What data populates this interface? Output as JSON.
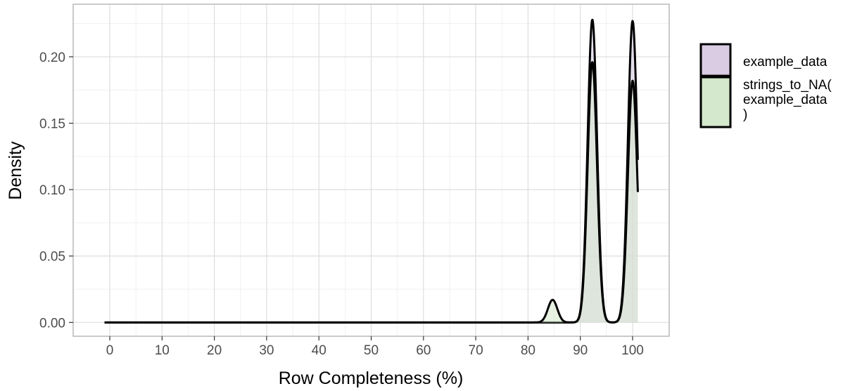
{
  "chart_data": {
    "type": "area",
    "xlabel": "Row Completeness (%)",
    "ylabel": "Density",
    "xlim": [
      -7,
      107
    ],
    "ylim": [
      -0.0104,
      0.2396
    ],
    "x_ticks": [
      0,
      10,
      20,
      30,
      40,
      50,
      60,
      70,
      80,
      90,
      100
    ],
    "x_tick_labels": [
      "0",
      "10",
      "20",
      "30",
      "40",
      "50",
      "60",
      "70",
      "80",
      "90",
      "100"
    ],
    "y_ticks": [
      0,
      0.05,
      0.1,
      0.15,
      0.2
    ],
    "y_tick_labels": [
      "0.00",
      "0.05",
      "0.10",
      "0.15",
      "0.20"
    ],
    "grid": true,
    "legend_position": "right",
    "series": [
      {
        "name": "example_data",
        "fill": "#d9cce3",
        "stroke": "#000000",
        "x_range": [
          -1,
          101
        ],
        "peaks": [
          {
            "center": 92.3,
            "height": 0.228,
            "sd": 0.9
          },
          {
            "center": 100.0,
            "height": 0.227,
            "sd": 0.9
          }
        ]
      },
      {
        "name": "strings_to_NA(example_data)",
        "legend_lines": [
          "strings_to_NA(",
          "example_data",
          ")"
        ],
        "fill": "#d3e8cc",
        "stroke": "#000000",
        "x_range": [
          -1,
          101
        ],
        "peaks": [
          {
            "center": 84.7,
            "height": 0.017,
            "sd": 0.9
          },
          {
            "center": 92.3,
            "height": 0.196,
            "sd": 0.9
          },
          {
            "center": 100.0,
            "height": 0.182,
            "sd": 0.9
          }
        ]
      }
    ]
  }
}
